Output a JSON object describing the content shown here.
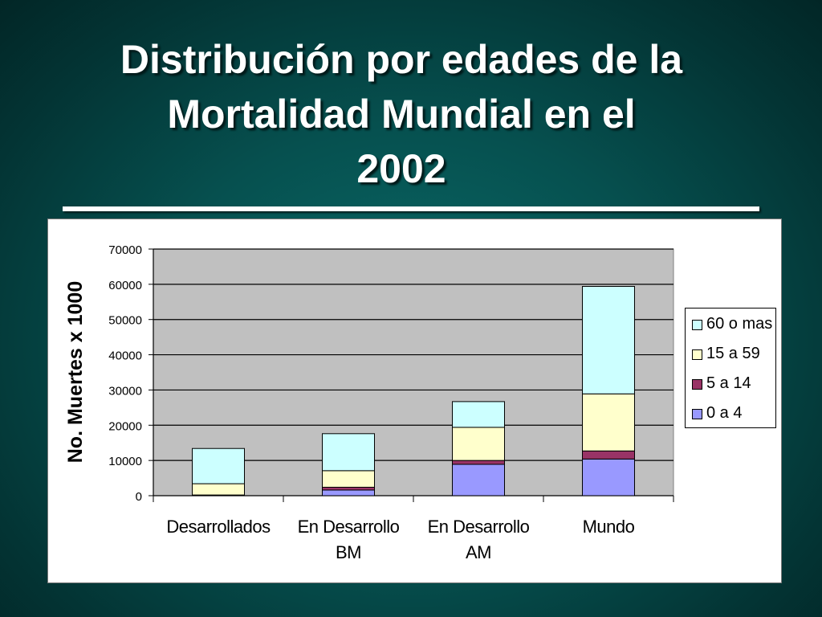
{
  "slide": {
    "title_lines": [
      "Distribución por edades de la",
      "Mortalidad Mundial en el",
      "2002"
    ]
  },
  "chart_data": {
    "type": "bar",
    "stacked": true,
    "title": "",
    "xlabel": "",
    "ylabel": "No. Muertes x 1000",
    "categories": [
      [
        "Desarrollados"
      ],
      [
        "En Desarrollo",
        "BM"
      ],
      [
        "En Desarrollo",
        "AM"
      ],
      [
        "Mundo"
      ]
    ],
    "ylim": [
      0,
      70000
    ],
    "yticks": [
      "0",
      "10000",
      "20000",
      "30000",
      "40000",
      "50000",
      "60000",
      "70000"
    ],
    "grid": true,
    "legend_position": "right",
    "series": [
      {
        "name": "0 a 4",
        "color": "#9999ff",
        "values": [
          100,
          1600,
          8900,
          10400
        ]
      },
      {
        "name": "5 a 14",
        "color": "#993366",
        "values": [
          100,
          800,
          1100,
          2300
        ]
      },
      {
        "name": "15 a 59",
        "color": "#ffffcc",
        "values": [
          3200,
          4700,
          9400,
          16200
        ]
      },
      {
        "name": "60 o mas",
        "color": "#ccffff",
        "values": [
          10000,
          10500,
          7300,
          30500
        ]
      }
    ]
  }
}
